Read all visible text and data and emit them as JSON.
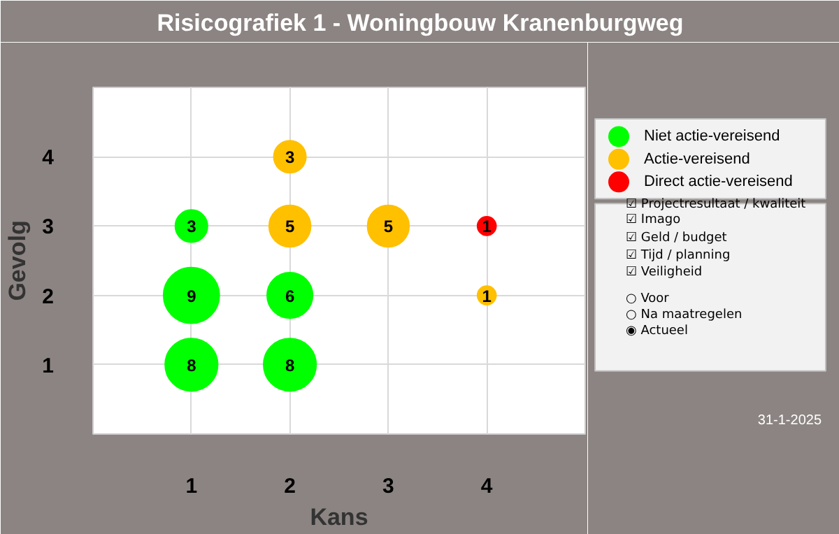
{
  "chart_data": {
    "type": "bubble",
    "title": "Risicografiek 1 - Woningbouw Kranenburgweg",
    "xlabel": "Kans",
    "ylabel": "Gevolg",
    "xlim": [
      0,
      5
    ],
    "ylim": [
      0,
      5
    ],
    "xticks": [
      1,
      2,
      3,
      4
    ],
    "yticks": [
      1,
      2,
      3,
      4
    ],
    "grid": true,
    "legend": "top right",
    "marker": "circle",
    "series": [
      {
        "name": "Niet actie-vereisend",
        "color": "#00ff00",
        "x": [
          1,
          1,
          1,
          2,
          2
        ],
        "values": [
          3,
          2,
          1,
          2,
          1
        ],
        "sizes": [
          3,
          9,
          8,
          6,
          8
        ],
        "value_labels": [
          "3",
          "9",
          "8",
          "6",
          "8"
        ]
      },
      {
        "name": "Actie-vereisend",
        "color": "#ffc000",
        "x": [
          2,
          2,
          3,
          4
        ],
        "values": [
          4,
          3,
          3,
          2
        ],
        "sizes": [
          3,
          5,
          5,
          1
        ],
        "value_labels": [
          "3",
          "5",
          "5",
          "1"
        ]
      },
      {
        "name": "Direct actie-vereisend",
        "color": "#ff0000",
        "x": [
          4
        ],
        "values": [
          3
        ],
        "sizes": [
          1
        ],
        "value_labels": [
          "1"
        ]
      }
    ],
    "annotations": [
      "☑ Projectresultaat / kwaliteit",
      "☑ Imago",
      "☑ Geld / budget",
      "☑ Tijd / planning",
      "☑ Veiligheid",
      "○ Voor",
      "○ Na maatregelen",
      "◉ Actueel",
      "31-1-2025"
    ]
  }
}
